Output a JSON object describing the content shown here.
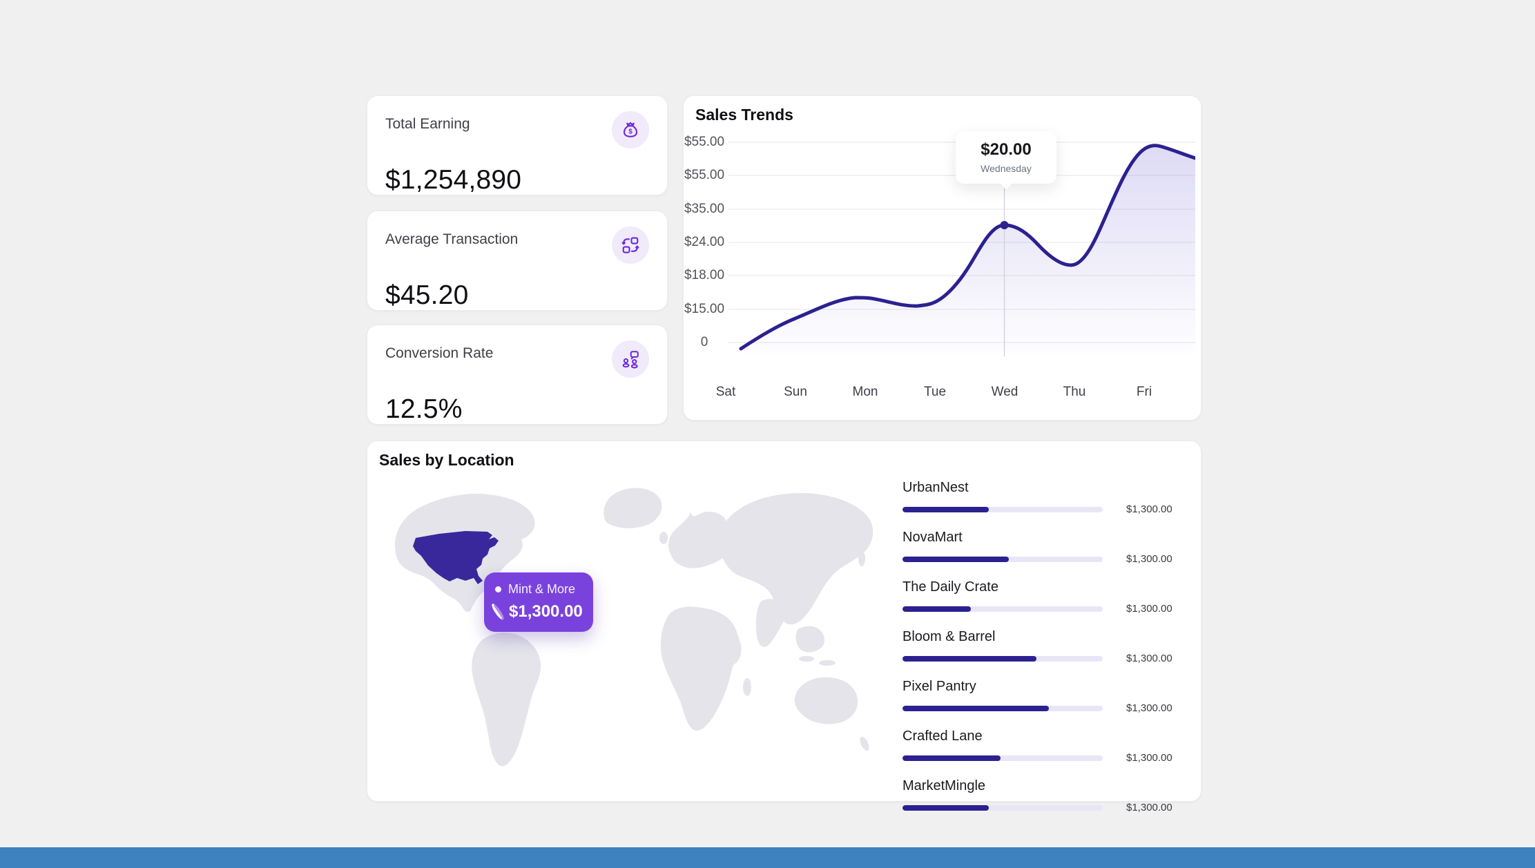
{
  "page": {
    "background": "#f0f0f1",
    "accent": "#2c2190",
    "bottom_bar_color": "#3e82bf"
  },
  "stat_cards": [
    {
      "label": "Total Earning",
      "value": "$1,254,890",
      "icon": "money-bag-icon"
    },
    {
      "label": "Average Transaction",
      "value": "$45.20",
      "icon": "transactions-icon"
    },
    {
      "label": "Conversion Rate",
      "value": "12.5%",
      "icon": "conversion-icon"
    }
  ],
  "sales_trends": {
    "title": "Sales Trends",
    "y_ticks": [
      "$55.00",
      "$55.00",
      "$35.00",
      "$24.00",
      "$18.00",
      "$15.00",
      "0"
    ],
    "x_ticks": [
      "Sat",
      "Sun",
      "Mon",
      "Tue",
      "Wed",
      "Thu",
      "Fri"
    ],
    "tooltip": {
      "value": "$20.00",
      "day": "Wednesday"
    },
    "line_color": "#2c2190"
  },
  "sales_by_location": {
    "title": "Sales by Location",
    "map_tooltip": {
      "store": "Mint & More",
      "value": "$1,300.00"
    },
    "highlighted_country": "United States",
    "highlight_color": "#38289c",
    "stores": [
      {
        "name": "UrbanNest",
        "value": "$1,300.00",
        "percent": 43
      },
      {
        "name": "NovaMart",
        "value": "$1,300.00",
        "percent": 53
      },
      {
        "name": "The Daily Crate",
        "value": "$1,300.00",
        "percent": 34
      },
      {
        "name": "Bloom & Barrel",
        "value": "$1,300.00",
        "percent": 67
      },
      {
        "name": "Pixel Pantry",
        "value": "$1,300.00",
        "percent": 73
      },
      {
        "name": "Crafted Lane",
        "value": "$1,300.00",
        "percent": 49
      },
      {
        "name": "MarketMingle",
        "value": "$1,300.00",
        "percent": 43
      }
    ]
  },
  "chart_data": [
    {
      "type": "area",
      "title": "Sales Trends",
      "x": [
        "Sat",
        "Sun",
        "Mon",
        "Tue",
        "Wed",
        "Thu",
        "Fri"
      ],
      "values": [
        0,
        15,
        16,
        17,
        20,
        16,
        55
      ],
      "ylabel": "",
      "y_tick_labels_top_to_bottom": [
        "$55.00",
        "$55.00",
        "$35.00",
        "$24.00",
        "$18.00",
        "$15.00",
        "0"
      ],
      "tooltip_point": {
        "x": "Wed",
        "value": "$20.00",
        "label": "Wednesday"
      },
      "grid": "horizontal",
      "legend": false
    },
    {
      "type": "bar",
      "title": "Sales by Location",
      "categories": [
        "UrbanNest",
        "NovaMart",
        "The Daily Crate",
        "Bloom & Barrel",
        "Pixel Pantry",
        "Crafted Lane",
        "MarketMingle"
      ],
      "values": [
        1300,
        1300,
        1300,
        1300,
        1300,
        1300,
        1300
      ],
      "value_labels": [
        "$1,300.00",
        "$1,300.00",
        "$1,300.00",
        "$1,300.00",
        "$1,300.00",
        "$1,300.00",
        "$1,300.00"
      ],
      "bar_fill_percent": [
        43,
        53,
        34,
        67,
        73,
        49,
        43
      ],
      "orientation": "horizontal"
    }
  ]
}
